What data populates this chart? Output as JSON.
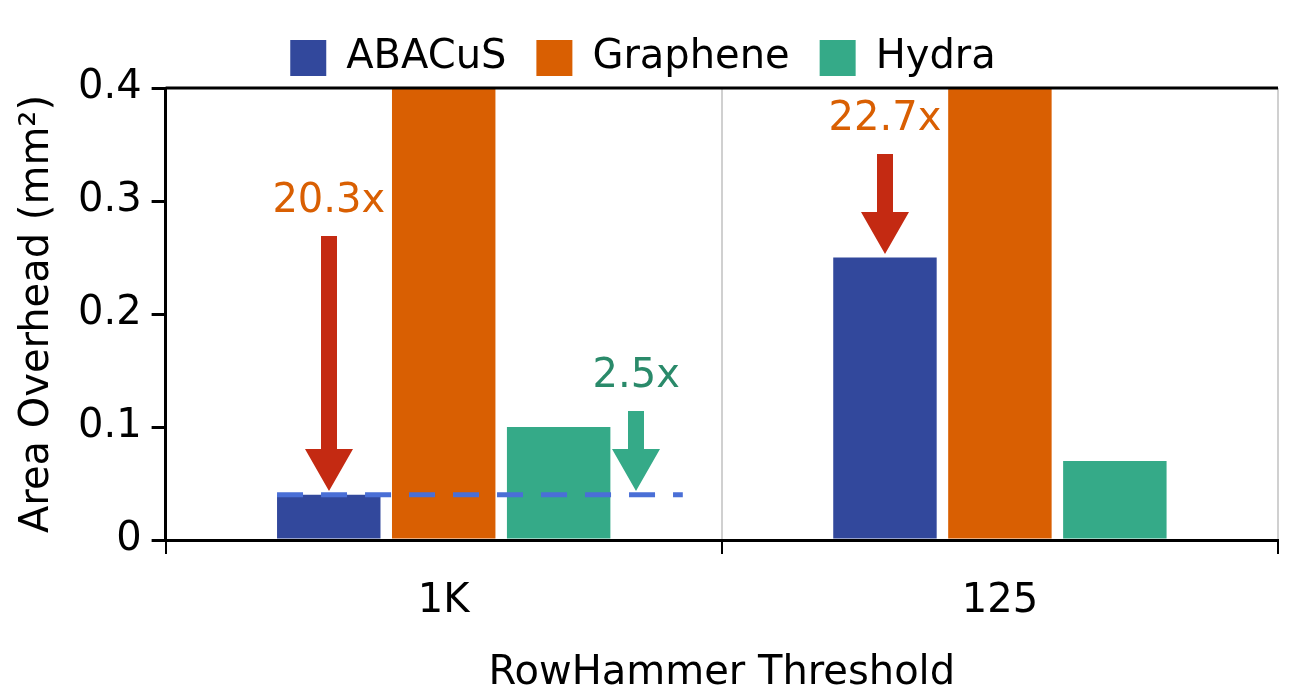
{
  "chart_data": {
    "type": "bar",
    "xlabel": "RowHammer Threshold",
    "ylabel": "Area Overhead (mm²)",
    "categories": [
      "1K",
      "125"
    ],
    "series": [
      {
        "name": "ABACuS",
        "color": "#32489c",
        "values": [
          0.04,
          0.25
        ]
      },
      {
        "name": "Graphene",
        "color": "#d95f02",
        "values": [
          0.4,
          0.4
        ]
      },
      {
        "name": "Hydra",
        "color": "#35aa88",
        "values": [
          0.1,
          0.07
        ]
      }
    ],
    "ylim": [
      0,
      0.4
    ],
    "yticks": [
      {
        "value": 0,
        "label": "0"
      },
      0.1,
      0.2,
      0.3,
      0.4
    ],
    "ref_lines": [
      {
        "axis": "y",
        "value": 0.04,
        "color": "#4a6fd6",
        "line_style": "dashed"
      }
    ],
    "annotations": [
      "20.3x",
      "22.7x",
      "2.5x"
    ],
    "grid": "x",
    "legend": "top"
  }
}
